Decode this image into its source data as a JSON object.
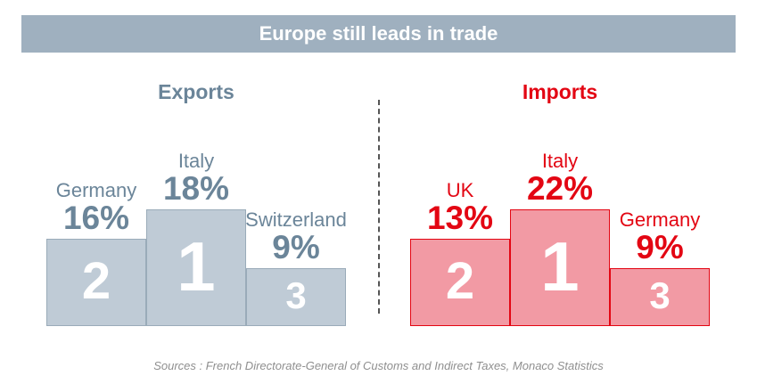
{
  "title": "Europe still leads in trade",
  "source": "Sources : French Directorate-General of Customs and Indirect Taxes, Monaco Statistics",
  "colors": {
    "banner": "#9fb0bf",
    "exports_text": "#6b8599",
    "exports_fill": "#bfcbd6",
    "exports_border": "#9aabb9",
    "imports_text": "#e30613",
    "imports_fill": "#f29aa4",
    "imports_border": "#e30613"
  },
  "chart_data": [
    {
      "type": "bar",
      "title": "Exports",
      "categories": [
        "Germany",
        "Italy",
        "Switzerland"
      ],
      "values": [
        16,
        18,
        9
      ],
      "value_labels": [
        "16%",
        "18%",
        "9%"
      ],
      "ranks": [
        "2",
        "1",
        "3"
      ],
      "unit": "%"
    },
    {
      "type": "bar",
      "title": "Imports",
      "categories": [
        "UK",
        "Italy",
        "Germany"
      ],
      "values": [
        13,
        22,
        9
      ],
      "value_labels": [
        "13%",
        "22%",
        "9%"
      ],
      "ranks": [
        "2",
        "1",
        "3"
      ],
      "unit": "%"
    }
  ]
}
